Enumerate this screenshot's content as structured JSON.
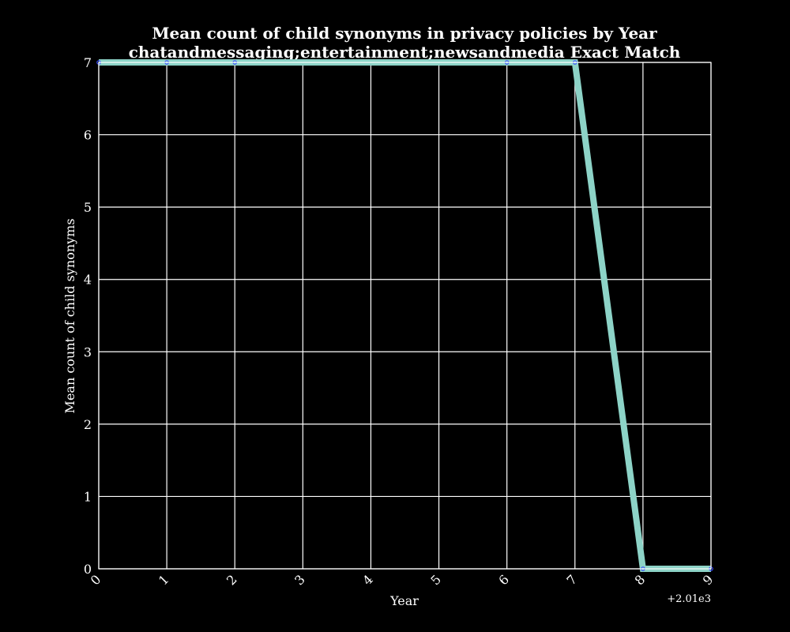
{
  "chart_data": {
    "type": "line",
    "title": "Mean count of child synonyms in privacy policies by Year",
    "subtitle": "chatandmessaging;entertainment;newsandmedia Exact Match",
    "xlabel": "Year",
    "ylabel": "Mean count of child synonyms",
    "x_offset_label": "+2.01e3",
    "x_tick_labels": [
      "0",
      "1",
      "2",
      "3",
      "4",
      "5",
      "6",
      "7",
      "8",
      "9"
    ],
    "y_tick_labels": [
      "0",
      "1",
      "2",
      "3",
      "4",
      "5",
      "6",
      "7"
    ],
    "xlim": [
      0,
      9
    ],
    "ylim": [
      0,
      7
    ],
    "grid": true,
    "x": [
      2010,
      2011,
      2012,
      2016,
      2017,
      2018,
      2019
    ],
    "series": [
      {
        "values": [
          7,
          7,
          7,
          7,
          7,
          0,
          0
        ],
        "color": "#8dd3c7",
        "marker_color": "#3a4cff"
      }
    ],
    "background_color": "#000000",
    "foreground_color": "#ffffff"
  }
}
